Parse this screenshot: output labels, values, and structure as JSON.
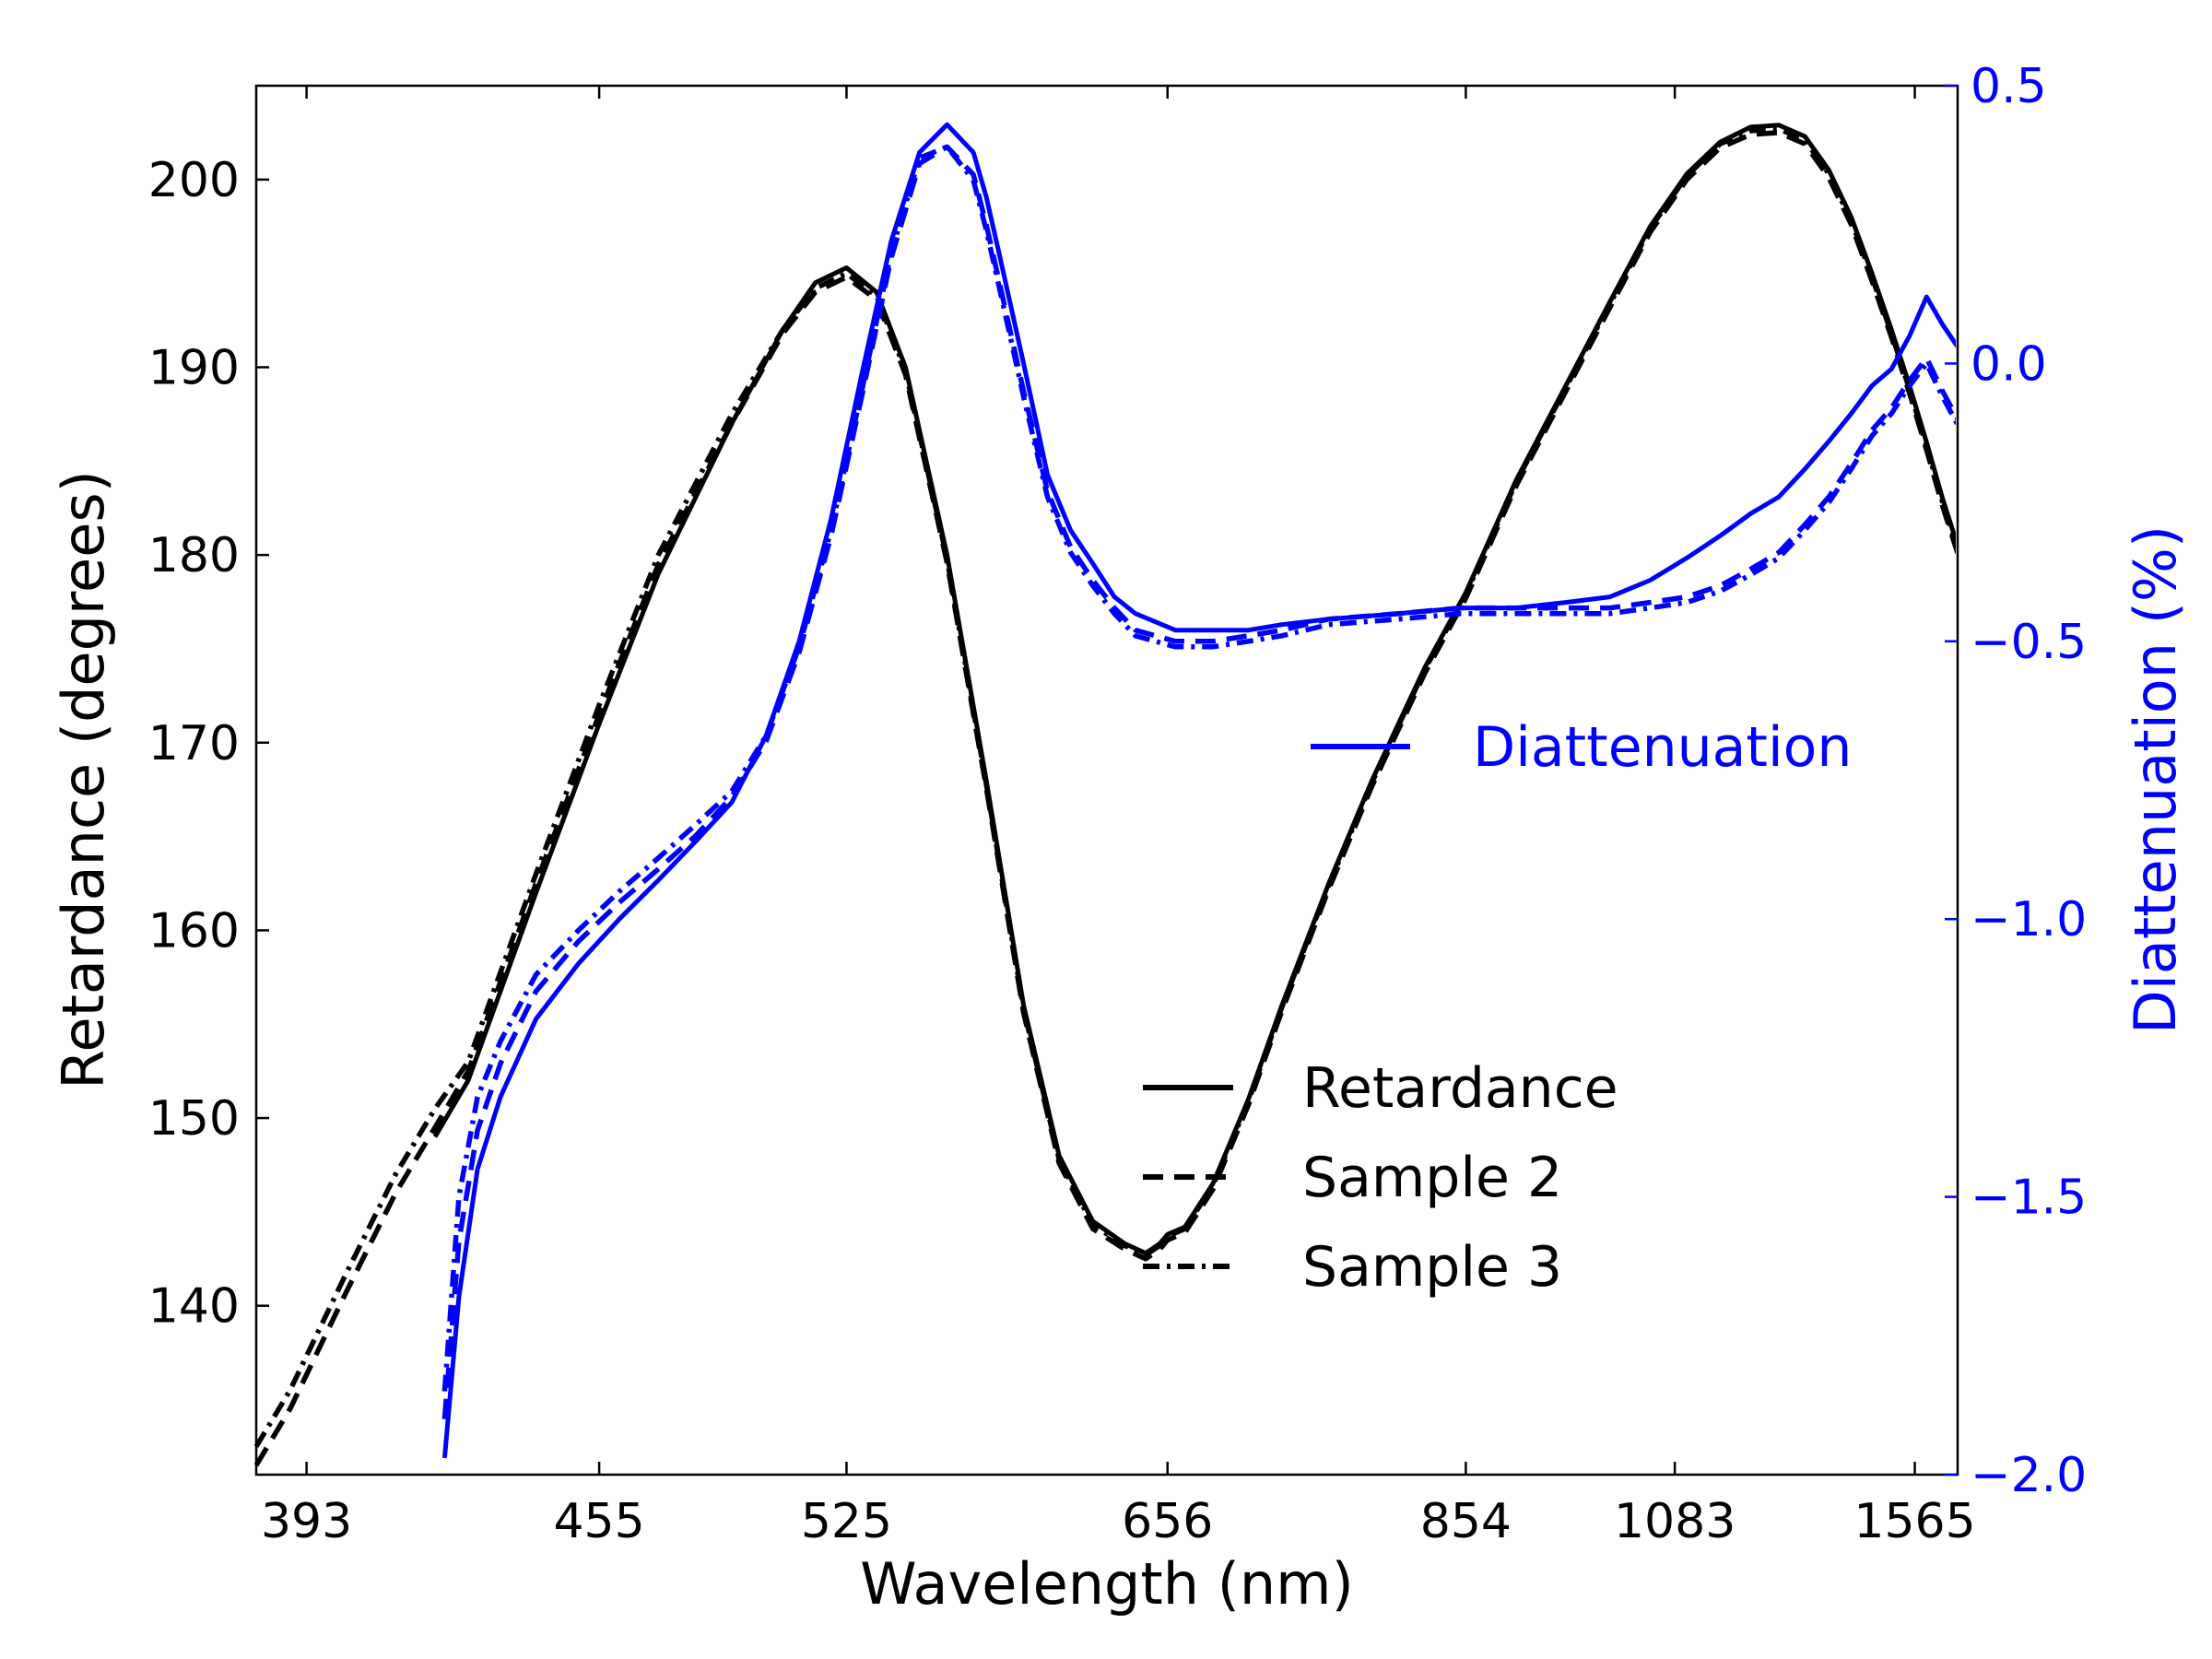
{
  "chart_data": {
    "type": "line",
    "title": "",
    "xlabel": "Wavelength (nm)",
    "ylabel": "Retardance (degrees)",
    "y2label": "Diattenuation (%)",
    "x_scale": "reciprocal",
    "xlim": [
      384,
      1700
    ],
    "ylim": [
      131,
      205
    ],
    "y2lim": [
      -2.0,
      0.5
    ],
    "xticks": [
      393,
      455,
      525,
      656,
      854,
      1083,
      1565
    ],
    "yticks": [
      140,
      150,
      160,
      170,
      180,
      190,
      200
    ],
    "y2ticks": [
      -2.0,
      -1.5,
      -1.0,
      -0.5,
      0.0,
      0.5
    ],
    "xtick_labels": [
      "393",
      "455",
      "525",
      "656",
      "854",
      "1083",
      "1565"
    ],
    "ytick_labels": [
      "140",
      "150",
      "160",
      "170",
      "180",
      "190",
      "200"
    ],
    "y2tick_labels": [
      "−2.0",
      "−1.5",
      "−1.0",
      "−0.5",
      "0.0",
      "0.5"
    ],
    "colors": {
      "retardance": "#000000",
      "diattenuation": "#0000ff"
    },
    "legends": [
      {
        "placement": "lower-right",
        "entries": [
          "Retardance",
          "Sample 2",
          "Sample 3"
        ]
      },
      {
        "placement": "center-right",
        "entries": [
          "Diattenuation"
        ]
      }
    ],
    "series": [
      {
        "name": "Retardance",
        "axis": "left",
        "color": "#000000",
        "dash": "solid",
        "x": [
          418,
          425,
          440,
          455,
          470,
          490,
          505,
          515,
          525,
          535,
          545,
          560,
          575,
          590,
          605,
          620,
          635,
          645,
          652,
          656,
          665,
          680,
          700,
          720,
          750,
          780,
          820,
          854,
          900,
          950,
          1000,
          1050,
          1100,
          1150,
          1200,
          1250,
          1300,
          1350,
          1400,
          1450,
          1500,
          1550,
          1600,
          1650,
          1700
        ],
        "y": [
          149,
          152,
          162,
          171,
          179,
          187,
          192,
          194.5,
          195.3,
          194,
          190,
          180,
          168,
          156,
          148,
          144.5,
          143.3,
          142.8,
          143.3,
          143.8,
          144.2,
          146.5,
          151,
          156,
          162.5,
          168,
          174,
          178,
          184,
          189,
          193.5,
          197.5,
          200.3,
          202,
          202.8,
          202.9,
          202.3,
          200.5,
          198,
          195,
          192,
          189,
          186,
          183,
          180.5
        ]
      },
      {
        "name": "Sample 2",
        "axis": "left",
        "color": "#000000",
        "dash": "dashed",
        "x": [
          384,
          390,
          400,
          410,
          418,
          425,
          440,
          455,
          470,
          490,
          505,
          515,
          525,
          535,
          545,
          560,
          575,
          590,
          605,
          620,
          635,
          645,
          652,
          656,
          665,
          680,
          700,
          720,
          750,
          780,
          820,
          854,
          900,
          950,
          1000,
          1050,
          1100,
          1150,
          1200,
          1250,
          1300,
          1350,
          1400,
          1450,
          1500,
          1550,
          1600,
          1650,
          1700
        ],
        "y": [
          131.5,
          134.5,
          140.5,
          146,
          149.5,
          152.5,
          162.5,
          171.5,
          179.5,
          187,
          191.8,
          194,
          194.8,
          193.6,
          189.6,
          179.6,
          167.6,
          155.6,
          147.6,
          144.1,
          143,
          142.5,
          143,
          143.5,
          143.9,
          146.2,
          150.7,
          155.7,
          162.2,
          167.7,
          173.7,
          177.7,
          183.7,
          188.7,
          193.2,
          197.2,
          200,
          201.7,
          202.4,
          202.5,
          201.9,
          200.1,
          197.6,
          194.6,
          191.6,
          188.6,
          185.6,
          182.6,
          180.1
        ]
      },
      {
        "name": "Sample 3",
        "axis": "left",
        "color": "#000000",
        "dash": "dashdot",
        "x": [
          384,
          390,
          400,
          410,
          418,
          425,
          440,
          455,
          470,
          490,
          505,
          515,
          525,
          535,
          545,
          560,
          575,
          590,
          605,
          620,
          635,
          645,
          652,
          656,
          665,
          680,
          700,
          720,
          750,
          780,
          820,
          854,
          900,
          950,
          1000,
          1050,
          1100,
          1150,
          1200,
          1250,
          1300,
          1350,
          1400,
          1450,
          1500,
          1550,
          1600,
          1650,
          1700
        ],
        "y": [
          132.5,
          135.5,
          141.5,
          147,
          150.5,
          153,
          163,
          172,
          180,
          187.5,
          192,
          194.2,
          195,
          193.8,
          189.8,
          179.8,
          167.8,
          155.8,
          147.8,
          144.3,
          143.2,
          142.7,
          143.2,
          143.7,
          144.1,
          146.4,
          150.9,
          155.9,
          162.4,
          167.9,
          173.9,
          177.9,
          183.9,
          188.9,
          193.4,
          197.4,
          200.2,
          201.9,
          202.6,
          202.7,
          202.1,
          200.3,
          197.8,
          194.8,
          191.8,
          188.8,
          185.8,
          182.8,
          180.3
        ]
      },
      {
        "name": "Diattenuation",
        "axis": "right",
        "color": "#0000ff",
        "dash": "solid",
        "x": [
          420,
          423,
          427,
          432,
          440,
          450,
          460,
          470,
          480,
          490,
          500,
          510,
          520,
          530,
          540,
          550,
          560,
          570,
          575,
          580,
          590,
          600,
          610,
          620,
          630,
          640,
          660,
          680,
          700,
          720,
          750,
          800,
          850,
          900,
          950,
          1000,
          1050,
          1100,
          1150,
          1200,
          1250,
          1300,
          1350,
          1400,
          1450,
          1500,
          1550,
          1600,
          1650,
          1700
        ],
        "y": [
          -1.97,
          -1.68,
          -1.45,
          -1.32,
          -1.18,
          -1.08,
          -1.0,
          -0.93,
          -0.86,
          -0.79,
          -0.67,
          -0.5,
          -0.28,
          -0.02,
          0.22,
          0.38,
          0.43,
          0.38,
          0.3,
          0.2,
          0.0,
          -0.2,
          -0.3,
          -0.36,
          -0.42,
          -0.45,
          -0.48,
          -0.48,
          -0.48,
          -0.47,
          -0.46,
          -0.45,
          -0.44,
          -0.44,
          -0.43,
          -0.42,
          -0.39,
          -0.35,
          -0.31,
          -0.27,
          -0.24,
          -0.19,
          -0.14,
          -0.09,
          -0.04,
          -0.01,
          0.05,
          0.12,
          0.07,
          0.03
        ]
      },
      {
        "name": "",
        "axis": "right",
        "color": "#0000ff",
        "dash": "dashed",
        "x": [
          420,
          423,
          427,
          432,
          440,
          450,
          460,
          470,
          480,
          490,
          500,
          510,
          520,
          530,
          540,
          550,
          560,
          570,
          575,
          580,
          590,
          600,
          610,
          620,
          630,
          640,
          660,
          680,
          700,
          720,
          750,
          800,
          850,
          900,
          950,
          1000,
          1050,
          1100,
          1150,
          1200,
          1250,
          1300,
          1350,
          1400,
          1450,
          1500,
          1550,
          1600,
          1650,
          1700
        ],
        "y": [
          -1.9,
          -1.58,
          -1.38,
          -1.26,
          -1.13,
          -1.04,
          -0.97,
          -0.91,
          -0.85,
          -0.78,
          -0.68,
          -0.52,
          -0.31,
          -0.06,
          0.19,
          0.36,
          0.39,
          0.34,
          0.25,
          0.15,
          -0.05,
          -0.23,
          -0.33,
          -0.39,
          -0.44,
          -0.48,
          -0.5,
          -0.5,
          -0.49,
          -0.48,
          -0.46,
          -0.45,
          -0.44,
          -0.44,
          -0.44,
          -0.44,
          -0.43,
          -0.42,
          -0.4,
          -0.37,
          -0.34,
          -0.29,
          -0.24,
          -0.18,
          -0.12,
          -0.08,
          -0.03,
          0.01,
          -0.05,
          -0.1
        ]
      },
      {
        "name": "",
        "axis": "right",
        "color": "#0000ff",
        "dash": "dashdot",
        "x": [
          420,
          423,
          427,
          432,
          440,
          450,
          460,
          470,
          480,
          490,
          500,
          510,
          520,
          530,
          540,
          550,
          560,
          570,
          575,
          580,
          590,
          600,
          610,
          620,
          630,
          640,
          660,
          680,
          700,
          720,
          750,
          800,
          850,
          900,
          950,
          1000,
          1050,
          1100,
          1150,
          1200,
          1250,
          1300,
          1350,
          1400,
          1450,
          1500,
          1550,
          1600,
          1650,
          1700
        ],
        "y": [
          -1.85,
          -1.5,
          -1.32,
          -1.22,
          -1.1,
          -1.02,
          -0.95,
          -0.89,
          -0.83,
          -0.77,
          -0.67,
          -0.51,
          -0.3,
          -0.05,
          0.2,
          0.37,
          0.39,
          0.33,
          0.24,
          0.14,
          -0.06,
          -0.24,
          -0.34,
          -0.4,
          -0.45,
          -0.49,
          -0.51,
          -0.51,
          -0.5,
          -0.49,
          -0.47,
          -0.46,
          -0.45,
          -0.45,
          -0.45,
          -0.45,
          -0.44,
          -0.43,
          -0.41,
          -0.38,
          -0.35,
          -0.3,
          -0.25,
          -0.19,
          -0.13,
          -0.09,
          -0.04,
          0.0,
          -0.06,
          -0.11
        ]
      }
    ]
  }
}
